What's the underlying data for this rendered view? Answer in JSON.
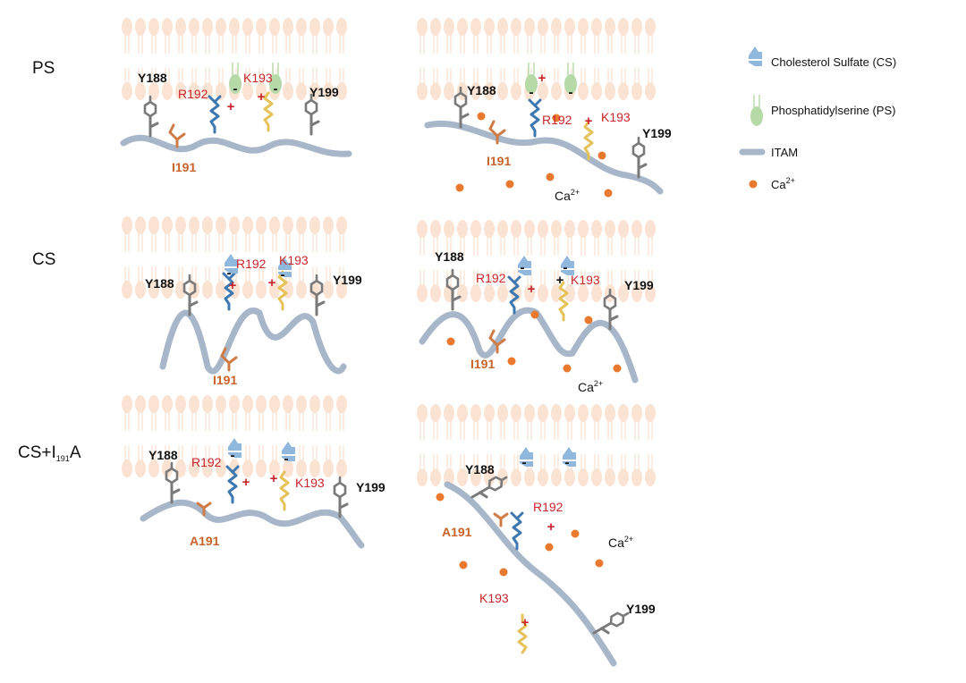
{
  "rows": [
    {
      "label": "PS",
      "left_labels": {
        "y188": "Y188",
        "r192": "R192",
        "k193": "K193",
        "y199": "Y199",
        "i191": "I191"
      },
      "right_labels": {
        "y188": "Y188",
        "r192": "R192",
        "k193": "K193",
        "y199": "Y199",
        "i191": "I191",
        "ca_main": "Ca",
        "ca_sup": "2+"
      }
    },
    {
      "label": "CS",
      "left_labels": {
        "y188": "Y188",
        "r192": "R192",
        "k193": "K193",
        "y199": "Y199",
        "i191": "I191"
      },
      "right_labels": {
        "y188": "Y188",
        "r192": "R192",
        "k193": "K193",
        "y199": "Y199",
        "i191": "I191",
        "ca_main": "Ca",
        "ca_sup": "2+"
      }
    },
    {
      "label_main": "CS+I",
      "label_sub": "191",
      "label_tail": "A",
      "left_labels": {
        "y188": "Y188",
        "r192": "R192",
        "k193": "K193",
        "y199": "Y199",
        "a191": "A191"
      },
      "right_labels": {
        "y188": "Y188",
        "r192": "R192",
        "k193": "K193",
        "y199": "Y199",
        "a191": "A191",
        "ca_main": "Ca",
        "ca_sup": "2+"
      }
    }
  ],
  "signs": {
    "plus": "+",
    "minus": "-"
  },
  "legend": {
    "cs": "Cholesterol Sulfate (CS)",
    "ps": "Phosphatidylserine (PS)",
    "itam": "ITAM",
    "ca_main": "Ca",
    "ca_sup": "2+"
  },
  "colors": {
    "lipid": "#fbe3d3",
    "itam": "#a8b6c9",
    "cs": "#8fb8dc",
    "ps": "#b5d9a7",
    "ca": "#e8792e",
    "r192": "#3d78b0",
    "k193": "#e6c25a",
    "i191": "#cf7b45",
    "tyrosine": "#7a7a7a",
    "charge": "#c8262c"
  }
}
